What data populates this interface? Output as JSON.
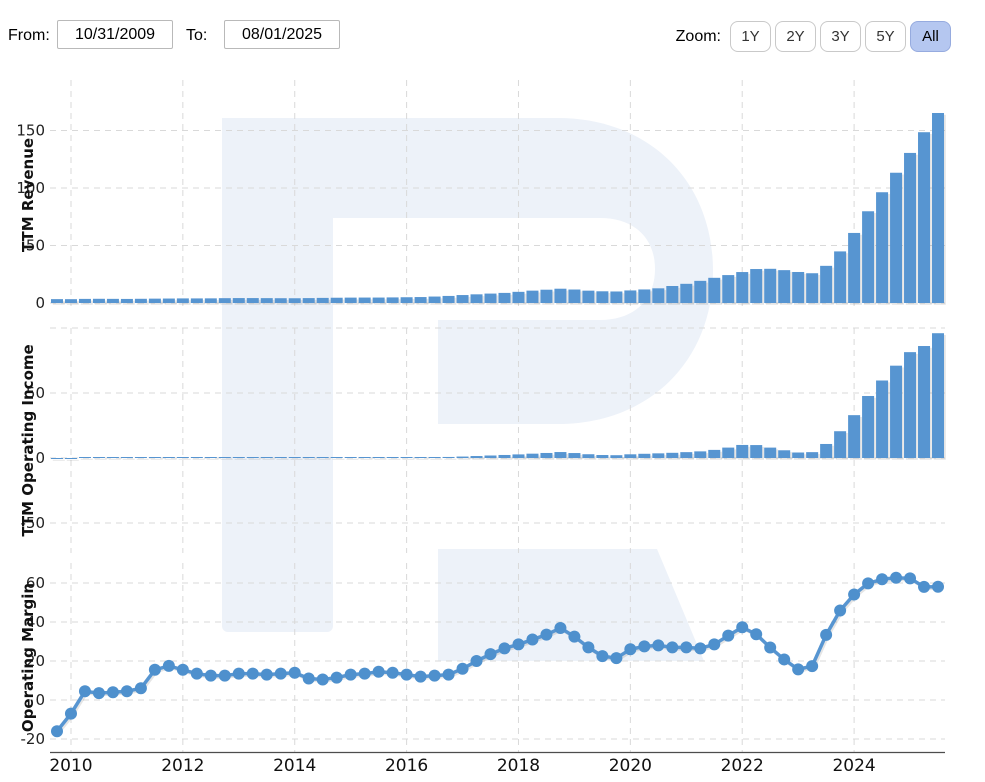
{
  "header": {
    "from_label": "From:",
    "from_value": "10/31/2009",
    "to_label": "To:",
    "to_value": "08/01/2025",
    "zoom_label": "Zoom:",
    "zoom_buttons": [
      "1Y",
      "2Y",
      "3Y",
      "5Y",
      "All"
    ],
    "active_zoom": "All"
  },
  "colors": {
    "series_blue": "#5795d1",
    "marker_blue": "#4e90cd",
    "grid": "#d9d9d9",
    "axis_line": "#4d4d4d",
    "watermark": "#edf2f9",
    "active_zoom_bg": "#b5c7f0",
    "active_zoom_border": "#96abdf"
  },
  "x_axis": {
    "year_labels": [
      "2010",
      "2012",
      "2014",
      "2016",
      "2018",
      "2020",
      "2022",
      "2024"
    ],
    "quarters": [
      "2009-10",
      "2010-01",
      "2010-04",
      "2010-07",
      "2010-10",
      "2011-01",
      "2011-04",
      "2011-07",
      "2011-10",
      "2012-01",
      "2012-04",
      "2012-07",
      "2012-10",
      "2013-01",
      "2013-04",
      "2013-07",
      "2013-10",
      "2014-01",
      "2014-04",
      "2014-07",
      "2014-10",
      "2015-01",
      "2015-04",
      "2015-07",
      "2015-10",
      "2016-01",
      "2016-04",
      "2016-07",
      "2016-10",
      "2017-01",
      "2017-04",
      "2017-07",
      "2017-10",
      "2018-01",
      "2018-04",
      "2018-07",
      "2018-10",
      "2019-01",
      "2019-04",
      "2019-07",
      "2019-10",
      "2020-01",
      "2020-04",
      "2020-07",
      "2020-10",
      "2021-01",
      "2021-04",
      "2021-07",
      "2021-10",
      "2022-01",
      "2022-04",
      "2022-07",
      "2022-10",
      "2023-01",
      "2023-04",
      "2023-07",
      "2023-10",
      "2024-01",
      "2024-04",
      "2024-07",
      "2024-10",
      "2025-01",
      "2025-04",
      "2025-07"
    ]
  },
  "chart_data": [
    {
      "type": "bar",
      "ylabel": "TTM Revenue",
      "yticks": [
        {
          "value": 0,
          "label": "0"
        },
        {
          "value": 50,
          "label": "50"
        },
        {
          "value": 100,
          "label": "100"
        },
        {
          "value": 150,
          "label": "150"
        }
      ],
      "ylim": [
        -8,
        195
      ],
      "grid": true,
      "values": [
        3.37,
        3.33,
        3.57,
        3.66,
        3.6,
        3.54,
        3.66,
        3.79,
        3.88,
        4.0,
        3.99,
        4.04,
        4.2,
        4.28,
        4.28,
        4.23,
        4.16,
        4.13,
        4.26,
        4.44,
        4.58,
        4.68,
        4.73,
        4.73,
        4.86,
        5.01,
        5.17,
        5.61,
        6.14,
        6.91,
        7.54,
        8.19,
        8.78,
        9.71,
        10.75,
        11.56,
        12.42,
        11.72,
        10.73,
        10.18,
        10.02,
        10.92,
        11.78,
        12.77,
        14.78,
        16.68,
        19.26,
        21.9,
        24.27,
        26.91,
        29.54,
        29.74,
        28.57,
        26.97,
        25.88,
        32.31,
        44.87,
        60.92,
        79.77,
        96.31,
        113.27,
        130.5,
        148.51,
        165.22
      ]
    },
    {
      "type": "bar",
      "ylabel": "TTM Operating Income",
      "yticks": [
        {
          "value": -50,
          "label": "-50"
        },
        {
          "value": 0,
          "label": "0"
        },
        {
          "value": 50,
          "label": "50"
        },
        {
          "value": 100,
          "label": ""
        }
      ],
      "ylim": [
        -75,
        100
      ],
      "grid": true,
      "values": [
        -0.54,
        -0.23,
        0.16,
        0.13,
        0.14,
        0.16,
        0.22,
        0.59,
        0.68,
        0.62,
        0.54,
        0.51,
        0.53,
        0.58,
        0.58,
        0.55,
        0.56,
        0.58,
        0.47,
        0.47,
        0.53,
        0.61,
        0.64,
        0.69,
        0.68,
        0.65,
        0.62,
        0.7,
        0.8,
        1.11,
        1.51,
        1.92,
        2.33,
        2.77,
        3.33,
        3.87,
        4.58,
        3.81,
        2.9,
        2.29,
        2.15,
        2.84,
        3.24,
        3.58,
        3.99,
        4.5,
        5.1,
        6.24,
        8.01,
        10.04,
        9.95,
        8.0,
        5.94,
        4.23,
        4.5,
        10.79,
        20.6,
        32.96,
        47.7,
        59.62,
        71.02,
        81.43,
        86.14,
        95.99
      ]
    },
    {
      "type": "line",
      "ylabel": "Operating Margin",
      "yticks": [
        {
          "value": -20,
          "label": "-20"
        },
        {
          "value": 0,
          "label": "0"
        },
        {
          "value": 20,
          "label": "20"
        },
        {
          "value": 40,
          "label": "40"
        },
        {
          "value": 60,
          "label": "60"
        }
      ],
      "ylim": [
        -27,
        72
      ],
      "grid": true,
      "values": [
        -16.0,
        -7.0,
        4.5,
        3.5,
        4.0,
        4.5,
        6.0,
        15.5,
        17.5,
        15.5,
        13.5,
        12.5,
        12.5,
        13.5,
        13.5,
        13.0,
        13.5,
        14.0,
        11.0,
        10.5,
        11.5,
        13.0,
        13.5,
        14.5,
        14.0,
        13.0,
        12.0,
        12.5,
        13.0,
        16.0,
        20.0,
        23.5,
        26.5,
        28.5,
        31.0,
        33.5,
        36.9,
        32.5,
        27.0,
        22.5,
        21.5,
        26.0,
        27.5,
        28.0,
        27.0,
        27.0,
        26.5,
        28.5,
        33.0,
        37.3,
        33.7,
        26.9,
        20.8,
        15.7,
        17.4,
        33.4,
        45.9,
        54.1,
        59.8,
        61.9,
        62.7,
        62.4,
        58.0,
        58.1
      ]
    }
  ]
}
